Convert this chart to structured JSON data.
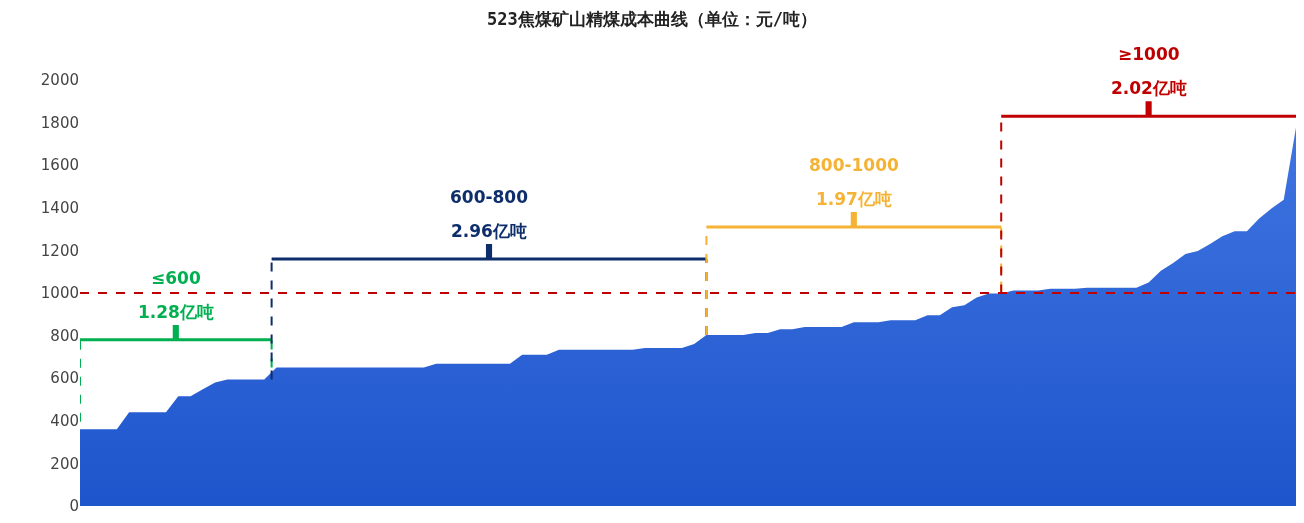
{
  "chart_data": {
    "type": "area",
    "title": "523焦煤矿山精煤成本曲线（单位：元/吨）",
    "categories": [
      null,
      null,
      null,
      null,
      null,
      null,
      null,
      null,
      null,
      null,
      null,
      null,
      null,
      null,
      null,
      null,
      null,
      null,
      null,
      null,
      null,
      null,
      null,
      null,
      null,
      null,
      null,
      null,
      null,
      null,
      null,
      null,
      null,
      null,
      null,
      null,
      null,
      null,
      null,
      null,
      null,
      null,
      null,
      null,
      null,
      null,
      null,
      null,
      null,
      null,
      null,
      null,
      null,
      null,
      null,
      null,
      null,
      null,
      null,
      null,
      null,
      null,
      null,
      null,
      null,
      null,
      null,
      null,
      null,
      null,
      null,
      null,
      null,
      null,
      null,
      null,
      null,
      null,
      null,
      null,
      null,
      null,
      null,
      null,
      null,
      null,
      null,
      null,
      null,
      null,
      null,
      null,
      null,
      null,
      null,
      null,
      null,
      null,
      null,
      null
    ],
    "series": [
      {
        "color": "#3f74e0",
        "values": [
          360,
          360,
          360,
          360,
          440,
          440,
          440,
          440,
          515,
          515,
          548,
          580,
          594,
          594,
          594,
          594,
          650,
          650,
          650,
          650,
          650,
          650,
          650,
          650,
          650,
          650,
          650,
          650,
          650,
          668,
          668,
          668,
          668,
          668,
          668,
          668,
          710,
          710,
          710,
          733,
          733,
          733,
          733,
          733,
          733,
          733,
          742,
          742,
          742,
          742,
          761,
          803,
          803,
          803,
          803,
          812,
          812,
          830,
          830,
          840,
          840,
          840,
          840,
          863,
          863,
          863,
          872,
          872,
          872,
          895,
          895,
          933,
          942,
          979,
          998,
          998,
          1012,
          1012,
          1012,
          1020,
          1020,
          1020,
          1025,
          1025,
          1025,
          1025,
          1025,
          1049,
          1104,
          1141,
          1183,
          1197,
          1230,
          1267,
          1290,
          1290,
          1350,
          1397,
          1438,
          1777
        ]
      }
    ],
    "ylim": [
      0,
      2000
    ],
    "yticks": [
      0,
      200,
      400,
      600,
      800,
      1000,
      1200,
      1400,
      1600,
      1800,
      2000
    ],
    "tick_labels": "y",
    "ref_lines": [
      {
        "axis": "y",
        "value": 1000,
        "color": "#c00000",
        "line_style": "dashed"
      }
    ],
    "annotations": [
      "≤600",
      "1.28亿吨",
      "600-800",
      "2.96亿吨",
      "800-1000",
      "1.97亿吨",
      "≥1000",
      "2.02亿吨"
    ]
  }
}
